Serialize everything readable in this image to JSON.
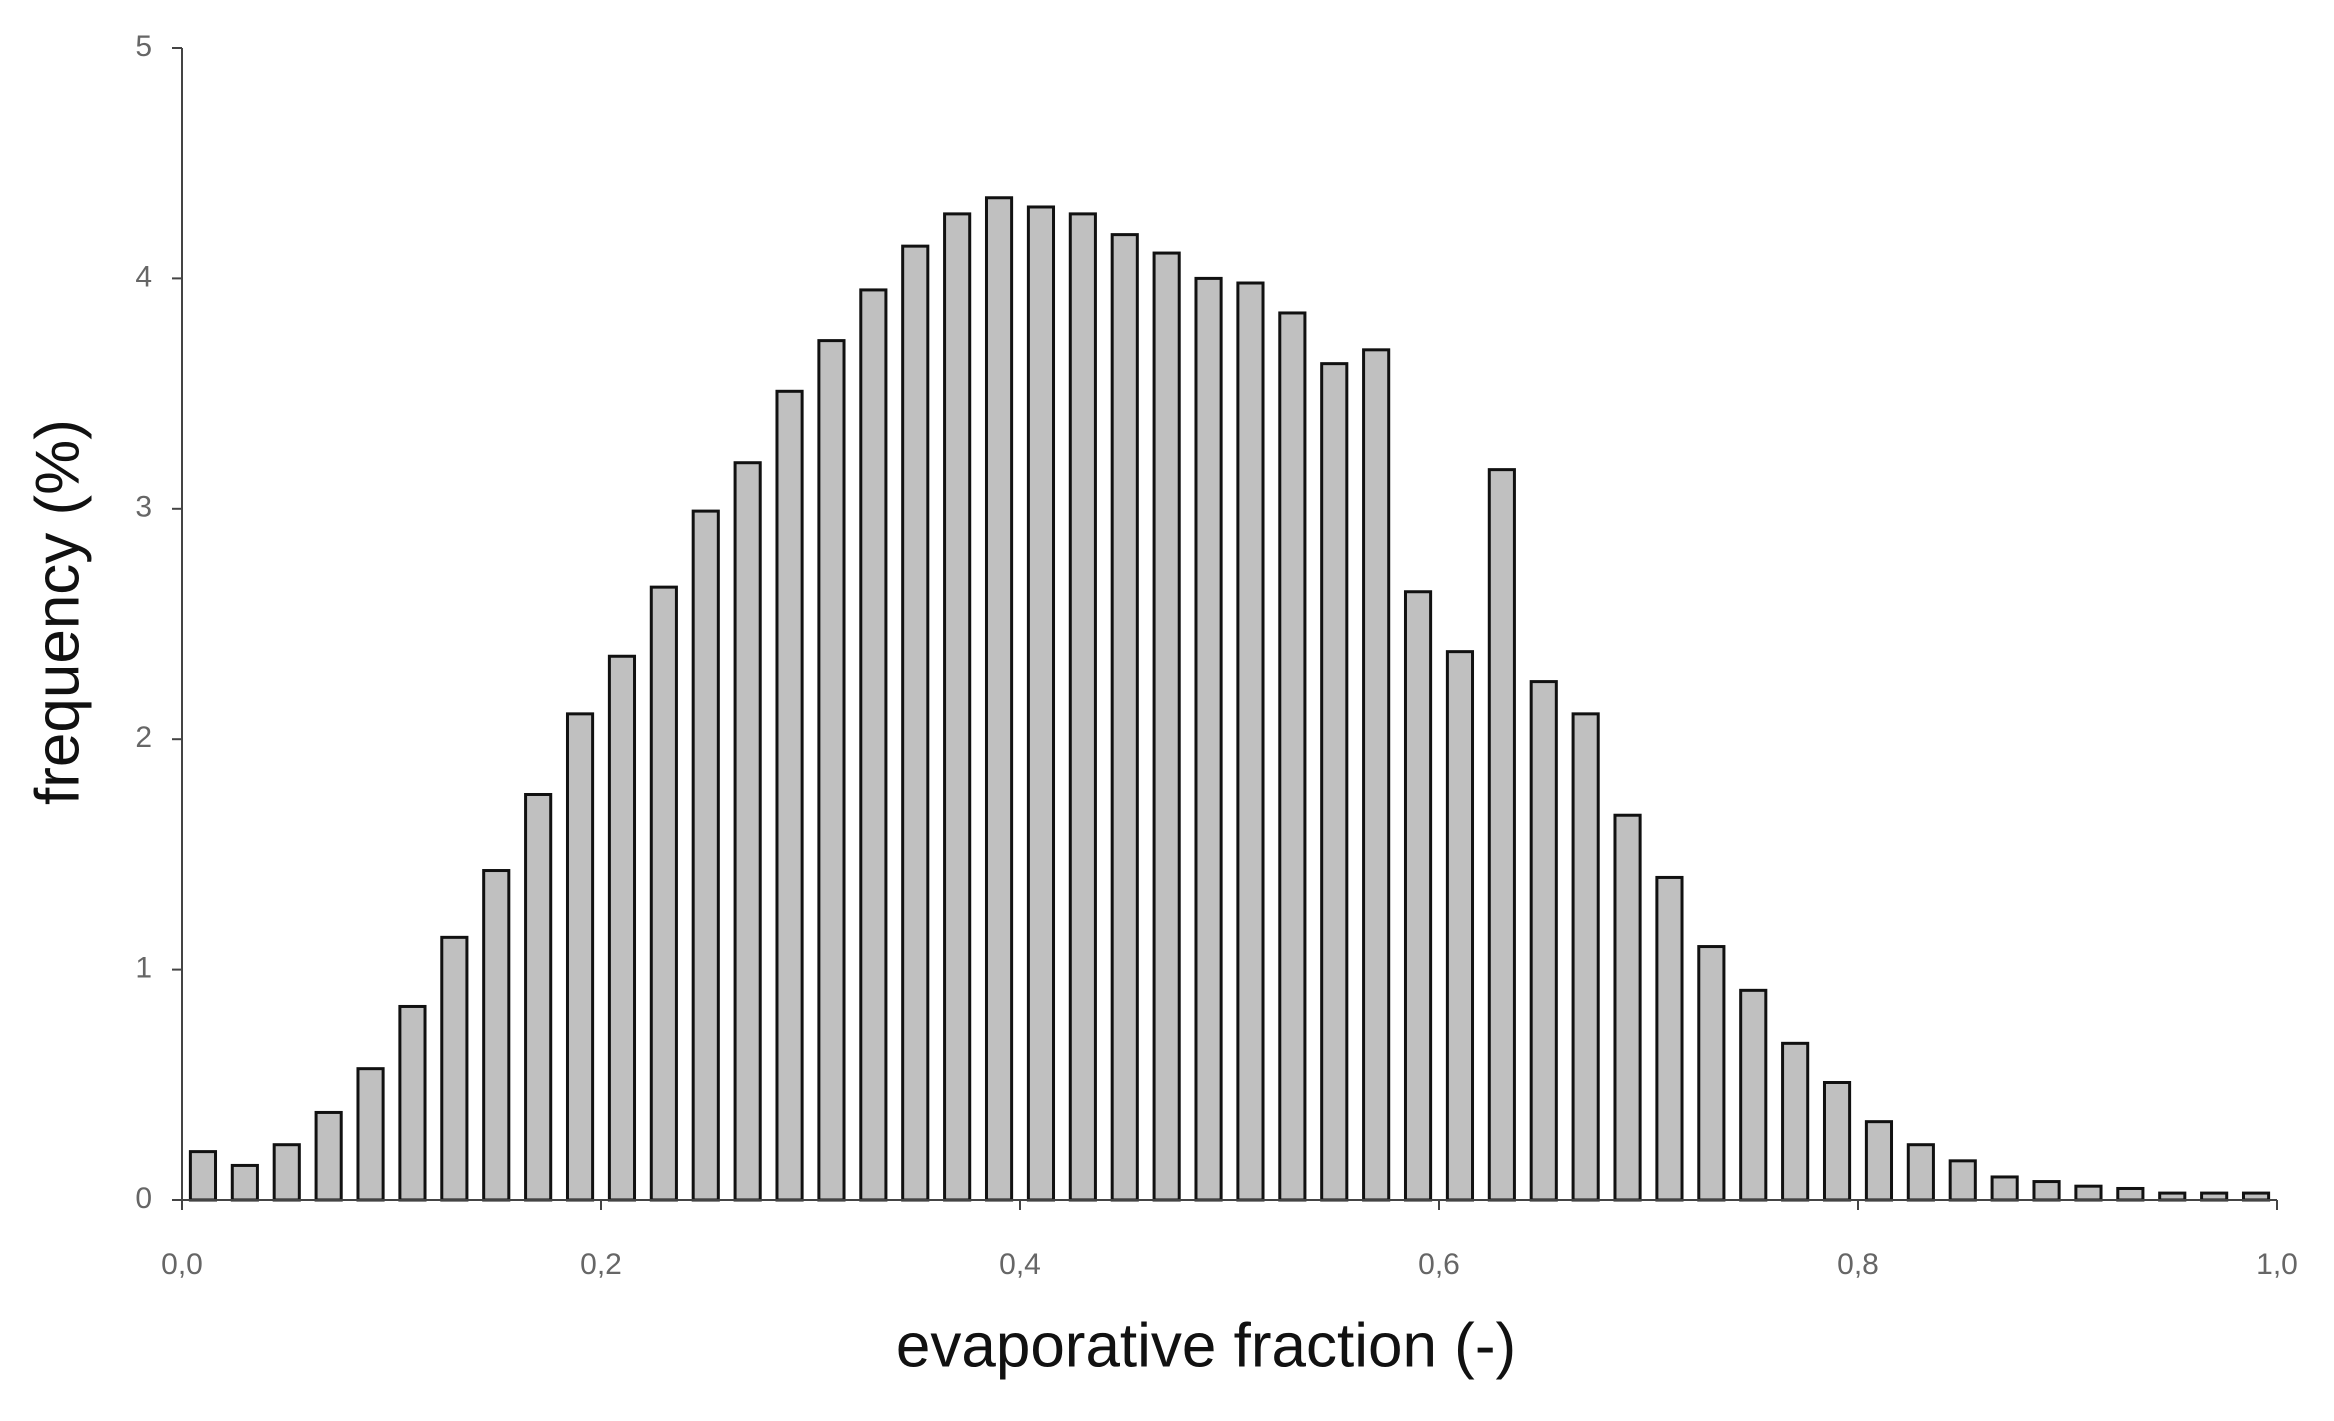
{
  "chart_data": {
    "type": "histogram",
    "x_label": "evaporative fraction (-)",
    "y_label": "frequency (%)",
    "bins": [
      0,
      0.02,
      0.04,
      0.06,
      0.08,
      0.1,
      0.12,
      0.14,
      0.16,
      0.18,
      0.2,
      0.22,
      0.24,
      0.26,
      0.28,
      0.3,
      0.32,
      0.34,
      0.36,
      0.38,
      0.4,
      0.42,
      0.44,
      0.46,
      0.48,
      0.5,
      0.52,
      0.54,
      0.56,
      0.58,
      0.6,
      0.62,
      0.64,
      0.66,
      0.68,
      0.7,
      0.72,
      0.74,
      0.76,
      0.78,
      0.8,
      0.82,
      0.84,
      0.86,
      0.88,
      0.9,
      0.92,
      0.94,
      0.96,
      0.98,
      1.0
    ],
    "values": [
      0.21,
      0.15,
      0.24,
      0.38,
      0.57,
      0.84,
      1.14,
      1.43,
      1.76,
      2.11,
      2.36,
      2.66,
      2.99,
      3.2,
      3.51,
      3.73,
      3.95,
      4.14,
      4.28,
      4.35,
      4.31,
      4.28,
      4.19,
      4.11,
      4.0,
      3.98,
      3.85,
      3.63,
      3.69,
      2.64,
      2.38,
      3.17,
      2.25,
      2.11,
      1.67,
      1.4,
      1.1,
      0.91,
      0.68,
      0.51,
      0.34,
      0.24,
      0.17,
      0.1,
      0.08,
      0.06,
      0.05,
      0.03,
      0.03,
      0.03
    ],
    "color": "#c0c0c0",
    "xlim": [
      0,
      1.0
    ],
    "xticks": [
      {
        "value": 0,
        "label": "0,0"
      },
      {
        "value": 0.2,
        "label": "0,2"
      },
      {
        "value": 0.4,
        "label": "0,4"
      },
      {
        "value": 0.6,
        "label": "0,6"
      },
      {
        "value": 0.8,
        "label": "0,8"
      },
      {
        "value": 1.0,
        "label": "1,0"
      }
    ],
    "ylim": [
      0,
      5
    ],
    "yticks": [
      0,
      1,
      2,
      3,
      4,
      5
    ],
    "grid": false
  }
}
